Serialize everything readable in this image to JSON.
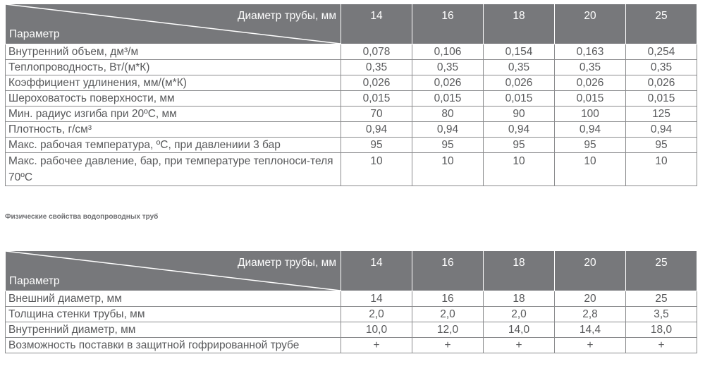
{
  "columns": [
    "14",
    "16",
    "18",
    "20",
    "25"
  ],
  "header": {
    "diameter": "Диаметр трубы, мм",
    "parameter": "Параметр"
  },
  "table1": {
    "rows": [
      {
        "label": "Внутренний объем, дм³/м",
        "values": [
          "0,078",
          "0,106",
          "0,154",
          "0,163",
          "0,254"
        ]
      },
      {
        "label": "Теплопроводность, Вт/(м*К)",
        "values": [
          "0,35",
          "0,35",
          "0,35",
          "0,35",
          "0,35"
        ]
      },
      {
        "label": "Коэффициент удлинения, мм/(м*К)",
        "values": [
          "0,026",
          "0,026",
          "0,026",
          "0,026",
          "0,026"
        ]
      },
      {
        "label": "Шероховатость поверхности, мм",
        "values": [
          "0,015",
          "0,015",
          "0,015",
          "0,015",
          "0,015"
        ]
      },
      {
        "label": "Мин. радиус изгиба при 20ºС, мм",
        "values": [
          "70",
          "80",
          "90",
          "100",
          "125"
        ]
      },
      {
        "label": "Плотность, г/см³",
        "values": [
          "0,94",
          "0,94",
          "0,94",
          "0,94",
          "0,94"
        ]
      },
      {
        "label": "Макс. рабочая температура, ºС, при давлениии 3 бар",
        "values": [
          "95",
          "95",
          "95",
          "95",
          "95"
        ]
      },
      {
        "label": "Макс. рабочее давление, бар, при температуре теплоноси-теля 70ºС",
        "values": [
          "10",
          "10",
          "10",
          "10",
          "10"
        ]
      }
    ]
  },
  "caption": "Физические свойства водопроводных труб",
  "table2": {
    "rows": [
      {
        "label": "Внешний диаметр, мм",
        "values": [
          "14",
          "16",
          "18",
          "20",
          "25"
        ]
      },
      {
        "label": "Толщина стенки трубы, мм",
        "values": [
          "2,0",
          "2,0",
          "2,0",
          "2,8",
          "3,5"
        ]
      },
      {
        "label": "Внутренний диаметр, мм",
        "values": [
          "10,0",
          "12,0",
          "14,0",
          "14,4",
          "18,0"
        ]
      },
      {
        "label": "Возможность поставки в защитной гофрированной трубе",
        "values": [
          "+",
          "+",
          "+",
          "+",
          "+"
        ]
      }
    ]
  }
}
